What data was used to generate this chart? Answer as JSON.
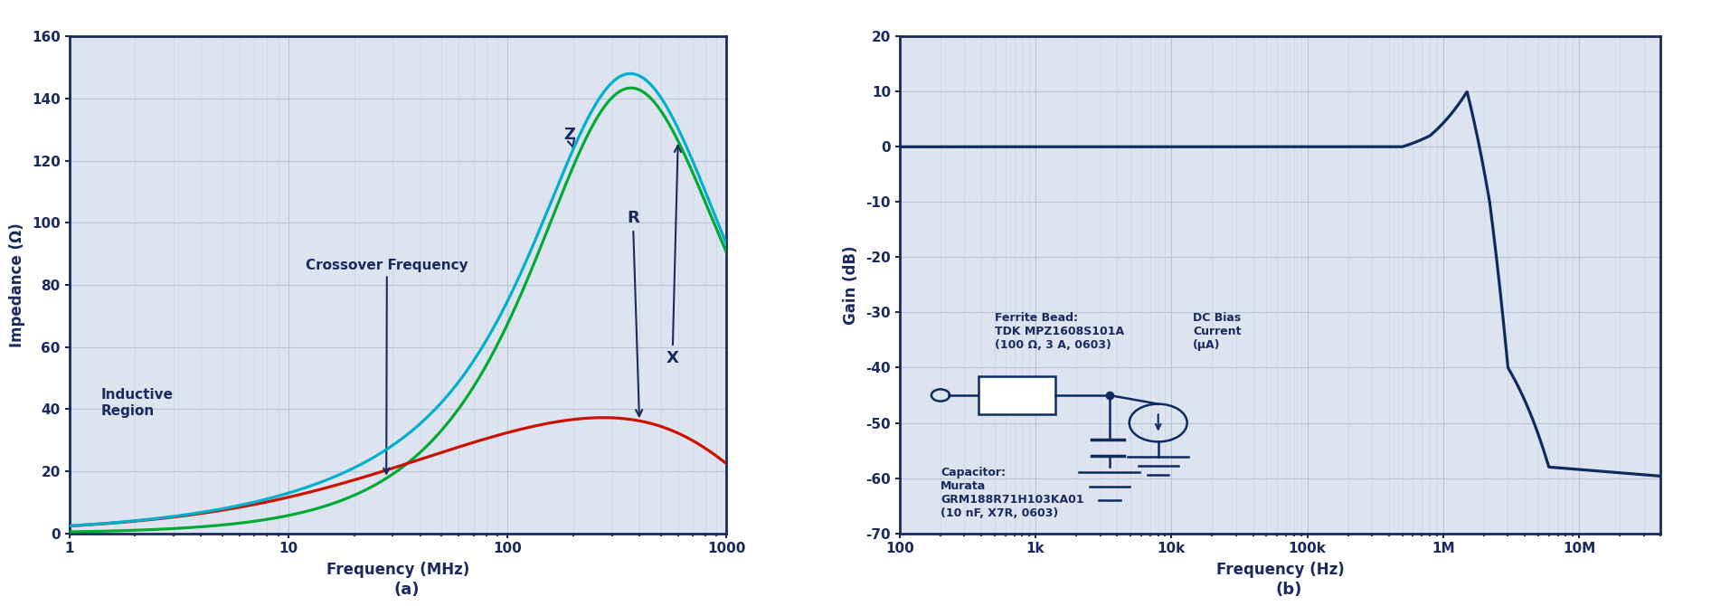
{
  "panel_a": {
    "xlabel": "Frequency (MHz)",
    "ylabel": "Impedance (Ω)",
    "xlim_log": [
      1,
      1000
    ],
    "ylim": [
      0,
      160
    ],
    "yticks": [
      0,
      20,
      40,
      60,
      80,
      100,
      120,
      140,
      160
    ],
    "bg_color": "#dde4f0",
    "grid_color": "#b8c4d8",
    "axis_color": "#1a2a5e",
    "curve_Z_color": "#00b0cc",
    "curve_R_color": "#cc1100",
    "curve_X_color": "#00aa33",
    "label_color": "#1a2a5e"
  },
  "panel_b": {
    "xlabel": "Frequency (Hz)",
    "ylabel": "Gain (dB)",
    "xlim_log": [
      100,
      40000000
    ],
    "ylim": [
      -70,
      20
    ],
    "yticks": [
      -70,
      -60,
      -50,
      -40,
      -30,
      -20,
      -10,
      0,
      10,
      20
    ],
    "bg_color": "#dde4f0",
    "grid_color": "#b8c4d8",
    "axis_color": "#1a2a5e",
    "curve_color": "#0d2b5e",
    "label_color": "#1a2a5e"
  },
  "fig_bg": "#ffffff",
  "label_a": "(a)",
  "label_b": "(b)"
}
